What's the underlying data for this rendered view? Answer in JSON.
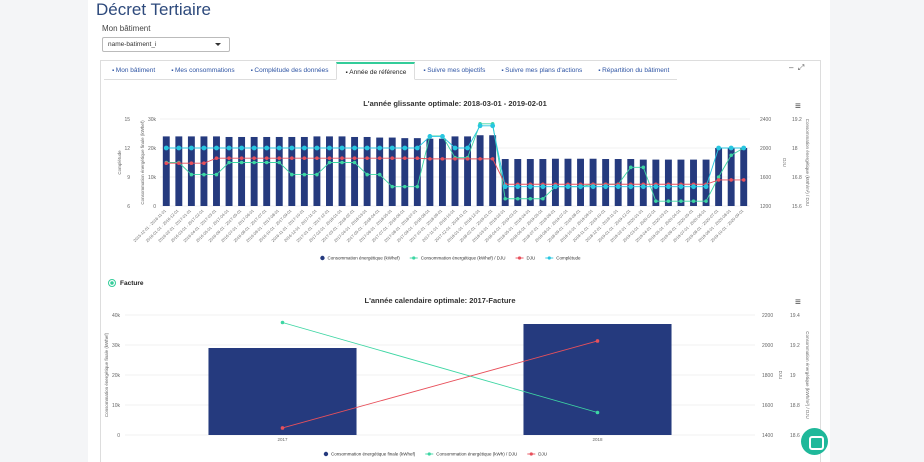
{
  "header": {
    "title": "Décret Tertiaire",
    "building_label": "Mon bâtiment",
    "building_select": "name-batiment_i"
  },
  "tabs": [
    "Mon bâtiment",
    "Mes consommations",
    "Complétude des données",
    "Année de référence",
    "Suivre mes objectifs",
    "Suivre mes plans d'actions",
    "Répartition du bâtiment"
  ],
  "active_tab": 3,
  "filter": {
    "label": "Facture"
  },
  "chart_data": [
    {
      "type": "combo",
      "title": "L'année glissante optimale: 2018-03-01 - 2019-02-01",
      "categories": [
        "2015-12-01 - 2016-11-01",
        "2016-01-01 - 2016-12-01",
        "2016-02-01 - 2017-01-01",
        "2016-03-01 - 2017-02-01",
        "2016-04-01 - 2017-03-01",
        "2016-05-01 - 2017-04-01",
        "2016-06-01 - 2017-05-01",
        "2016-07-01 - 2017-06-01",
        "2016-08-01 - 2017-07-01",
        "2016-09-01 - 2017-08-01",
        "2016-10-01 - 2017-09-01",
        "2016-11-01 - 2017-10-01",
        "2016-12-01 - 2017-11-01",
        "2017-01-01 - 2017-12-01",
        "2017-02-01 - 2018-01-01",
        "2017-03-01 - 2018-02-01",
        "2017-04-01 - 2018-03-01",
        "2017-05-01 - 2018-04-01",
        "2017-06-01 - 2018-05-01",
        "2017-07-01 - 2018-06-01",
        "2017-08-01 - 2018-07-01",
        "2017-09-01 - 2018-08-01",
        "2017-10-01 - 2018-09-01",
        "2017-11-01 - 2018-10-01",
        "2017-12-01 - 2018-11-01",
        "2018-01-01 - 2018-12-01",
        "2018-02-01 - 2019-01-01",
        "2018-03-01 - 2019-02-01",
        "2018-04-01 - 2019-03-01",
        "2018-05-01 - 2019-04-01",
        "2018-06-01 - 2019-05-01",
        "2018-07-01 - 2019-06-01",
        "2018-08-01 - 2019-07-01",
        "2018-09-01 - 2019-08-01",
        "2018-10-01 - 2019-09-01",
        "2018-11-01 - 2019-10-01",
        "2018-12-01 - 2019-11-01",
        "2019-01-01 - 2019-12-01",
        "2019-02-01 - 2020-01-01",
        "2019-03-01 - 2020-02-01",
        "2019-04-01 - 2020-03-01",
        "2019-05-01 - 2020-04-01",
        "2019-06-01 - 2020-05-01",
        "2019-07-01 - 2020-06-01",
        "2019-08-01 - 2020-07-01",
        "2019-09-01 - 2020-08-01",
        "2019-10-01 - 2020-09-01"
      ],
      "ylabel": "Consommation énergétique finale (kWhef)",
      "ylim": [
        0,
        30000
      ],
      "yticks": [
        0,
        {
          "value": 10000,
          "label": "10k"
        },
        {
          "value": 20000,
          "label": "20k"
        },
        {
          "value": 30000,
          "label": "30k"
        }
      ],
      "y2label": "DJU",
      "y2lim": [
        1200,
        2400
      ],
      "y2ticks": [
        1200,
        1600,
        2000,
        2400
      ],
      "y3label": "Consommation énergétique (kWh/m²) / DJU",
      "y3lim": [
        15.6,
        19.2
      ],
      "y3ticks": [
        15.6,
        16.8,
        18,
        19.2
      ],
      "y4label": "Complétude",
      "y4lim": [
        6,
        15
      ],
      "y4ticks": [
        6,
        9,
        12,
        15
      ],
      "grid": true,
      "series": [
        {
          "name": "Consommation énergétique (kWhef)",
          "kind": "bar",
          "axis": "y",
          "color": "#253a7e",
          "values": [
            24000,
            24000,
            24000,
            24000,
            24000,
            23800,
            23800,
            23800,
            23800,
            23800,
            23800,
            23800,
            24000,
            24000,
            24000,
            23800,
            23800,
            23600,
            23600,
            23400,
            23400,
            23200,
            23200,
            24000,
            24000,
            24400,
            24400,
            16200,
            16200,
            16200,
            16200,
            16300,
            16300,
            16300,
            16300,
            16200,
            16200,
            16200,
            16000,
            16000,
            16000,
            16000,
            16000,
            16000,
            20000,
            20000,
            20000
          ]
        },
        {
          "name": "Consommation énergétique (kWhef) / DJU",
          "kind": "line",
          "axis": "y3",
          "color": "#3dd6a3",
          "values": [
            17.4,
            17.4,
            16.9,
            16.9,
            16.9,
            17.4,
            17.4,
            17.4,
            17.4,
            17.4,
            16.9,
            16.9,
            16.9,
            17.4,
            17.4,
            17.4,
            16.9,
            16.9,
            16.4,
            16.4,
            16.4,
            18.5,
            18.5,
            17.6,
            17.6,
            19.0,
            19.0,
            15.9,
            15.9,
            15.9,
            15.9,
            16.4,
            16.4,
            16.4,
            16.5,
            16.5,
            16.5,
            17.2,
            17.2,
            15.8,
            15.8,
            15.8,
            15.8,
            15.8,
            16.8,
            17.7,
            18.0
          ]
        },
        {
          "name": "DJU",
          "kind": "line",
          "axis": "y2",
          "color": "#e8505b",
          "values": [
            1790,
            1790,
            1790,
            1790,
            1860,
            1860,
            1860,
            1860,
            1860,
            1860,
            1860,
            1860,
            1860,
            1860,
            1860,
            1860,
            1860,
            1860,
            1860,
            1860,
            1860,
            1850,
            1850,
            1850,
            1850,
            1850,
            1850,
            1500,
            1500,
            1500,
            1500,
            1500,
            1500,
            1500,
            1500,
            1500,
            1500,
            1500,
            1500,
            1500,
            1500,
            1500,
            1500,
            1500,
            1560,
            1560,
            1560
          ]
        },
        {
          "name": "Complétude",
          "kind": "line",
          "axis": "y4",
          "color": "#27c6e0",
          "values": [
            12,
            12,
            12,
            12,
            12,
            12,
            12,
            12,
            12,
            12,
            12,
            12,
            12,
            12,
            12,
            12,
            12,
            12,
            12,
            12,
            12,
            13.2,
            13.2,
            12,
            12,
            14.3,
            14.3,
            8,
            8,
            8,
            8,
            8,
            8,
            8,
            8,
            8,
            8,
            8,
            8,
            8,
            8,
            8,
            8,
            8,
            12,
            12,
            12
          ]
        }
      ]
    },
    {
      "type": "combo",
      "title": "L'année calendaire optimale: 2017-Facture",
      "categories": [
        "2017",
        "2018"
      ],
      "ylabel": "Consommation énergétique finale (kWhef)",
      "ylim": [
        0,
        40000
      ],
      "yticks": [
        0,
        {
          "value": 10000,
          "label": "10k"
        },
        {
          "value": 20000,
          "label": "20k"
        },
        {
          "value": 30000,
          "label": "30k"
        },
        {
          "value": 40000,
          "label": "40k"
        }
      ],
      "y2label": "DJU",
      "y2lim": [
        1400,
        2200
      ],
      "y2ticks": [
        1400,
        1600,
        1800,
        2000,
        2200
      ],
      "y3label": "Consommation énergétique (kWh/m²) / DJU",
      "y3lim": [
        18.6,
        19.4
      ],
      "y3ticks": [
        18.6,
        18.8,
        19,
        19.2,
        19.4
      ],
      "grid": true,
      "series": [
        {
          "name": "Consommation énergétique finale (kWhef)",
          "kind": "bar",
          "axis": "y",
          "color": "#253a7e",
          "values": [
            29000,
            37000
          ]
        },
        {
          "name": "Consommation énergétique (kWh) / DJU",
          "kind": "line",
          "axis": "y3",
          "color": "#3dd6a3",
          "values": [
            19.35,
            18.75
          ]
        },
        {
          "name": "DJU",
          "kind": "line",
          "axis": "y2",
          "color": "#e8505b",
          "values": [
            1447,
            2027
          ]
        }
      ]
    }
  ]
}
